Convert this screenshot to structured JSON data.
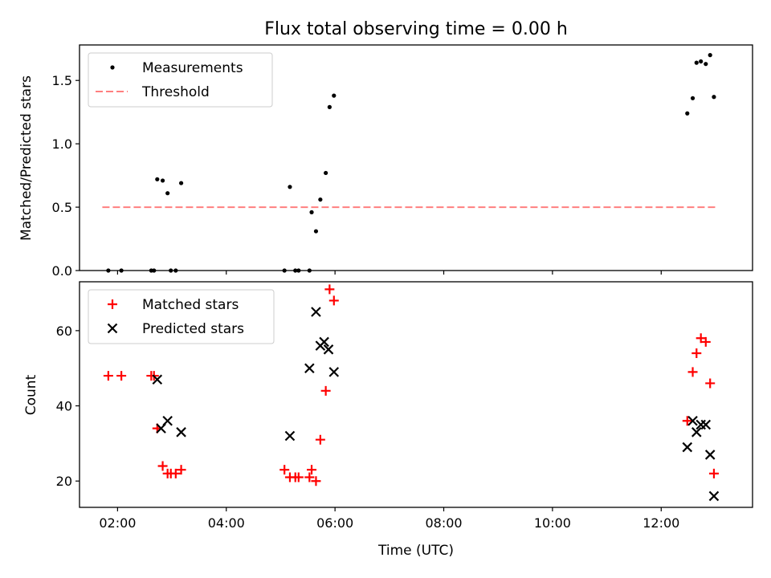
{
  "chart_data": {
    "title": "Flux total observing time = 0.00 h",
    "xlabel": "Time (UTC)",
    "x_unit": "hour_of_day_utc",
    "xlim": [
      1.3,
      13.68
    ],
    "x_ticks": [
      {
        "value": 2,
        "label": "02:00"
      },
      {
        "value": 4,
        "label": "04:00"
      },
      {
        "value": 6,
        "label": "06:00"
      },
      {
        "value": 8,
        "label": "08:00"
      },
      {
        "value": 10,
        "label": "10:00"
      },
      {
        "value": 12,
        "label": "12:00"
      }
    ],
    "panels": [
      {
        "type": "scatter",
        "ylabel": "Matched/Predicted stars",
        "ylim": [
          0.0,
          1.78
        ],
        "y_ticks": [
          {
            "value": 0.0,
            "label": "0.0"
          },
          {
            "value": 0.5,
            "label": "0.5"
          },
          {
            "value": 1.0,
            "label": "1.0"
          },
          {
            "value": 1.5,
            "label": "1.5"
          }
        ],
        "legend_position": "upper-left",
        "series": [
          {
            "name": "Measurements",
            "marker": "dot",
            "color": "#000000",
            "x": [
              1.83,
              2.07,
              2.62,
              2.67,
              2.73,
              2.83,
              2.92,
              2.98,
              3.07,
              3.17,
              5.07,
              5.17,
              5.27,
              5.33,
              5.53,
              5.57,
              5.65,
              5.73,
              5.83,
              5.9,
              5.98,
              12.48,
              12.58,
              12.65,
              12.73,
              12.82,
              12.9,
              12.97
            ],
            "y": [
              0.0,
              0.0,
              0.0,
              0.0,
              0.72,
              0.71,
              0.61,
              0.0,
              0.0,
              0.69,
              0.0,
              0.66,
              0.0,
              0.0,
              0.0,
              0.46,
              0.31,
              0.56,
              0.77,
              1.29,
              1.38,
              1.24,
              1.36,
              1.64,
              1.65,
              1.63,
              1.7,
              1.37
            ]
          },
          {
            "name": "Threshold",
            "type": "line",
            "style": "dashed",
            "color": "#ff7f7f",
            "x": [
              1.72,
              13.0
            ],
            "y": [
              0.5,
              0.5
            ]
          }
        ]
      },
      {
        "type": "scatter",
        "ylabel": "Count",
        "ylim": [
          13.0,
          73.0
        ],
        "y_ticks": [
          {
            "value": 20,
            "label": "20"
          },
          {
            "value": 40,
            "label": "40"
          },
          {
            "value": 60,
            "label": "60"
          }
        ],
        "legend_position": "upper-left",
        "series": [
          {
            "name": "Matched stars",
            "marker": "plus",
            "color": "#ff0000",
            "x": [
              1.83,
              2.07,
              2.62,
              2.67,
              2.73,
              2.83,
              2.92,
              2.98,
              3.07,
              3.17,
              5.07,
              5.17,
              5.27,
              5.33,
              5.53,
              5.57,
              5.65,
              5.73,
              5.83,
              5.9,
              5.98,
              12.48,
              12.58,
              12.65,
              12.73,
              12.82,
              12.9,
              12.97
            ],
            "y": [
              48,
              48,
              48,
              48,
              34,
              24,
              22,
              22,
              22,
              23,
              23,
              21,
              21,
              21,
              21,
              23,
              20,
              31,
              44,
              71,
              68,
              36,
              49,
              54,
              58,
              57,
              46,
              22
            ]
          },
          {
            "name": "Predicted stars",
            "marker": "x",
            "color": "#000000",
            "x": [
              2.73,
              2.8,
              2.92,
              3.17,
              5.17,
              5.53,
              5.65,
              5.73,
              5.8,
              5.88,
              5.98,
              12.48,
              12.58,
              12.65,
              12.73,
              12.82,
              12.9,
              12.97
            ],
            "y": [
              47,
              34,
              36,
              33,
              32,
              50,
              65,
              56,
              57,
              55,
              49,
              29,
              36,
              33,
              35,
              35,
              27,
              16
            ]
          }
        ]
      }
    ]
  }
}
